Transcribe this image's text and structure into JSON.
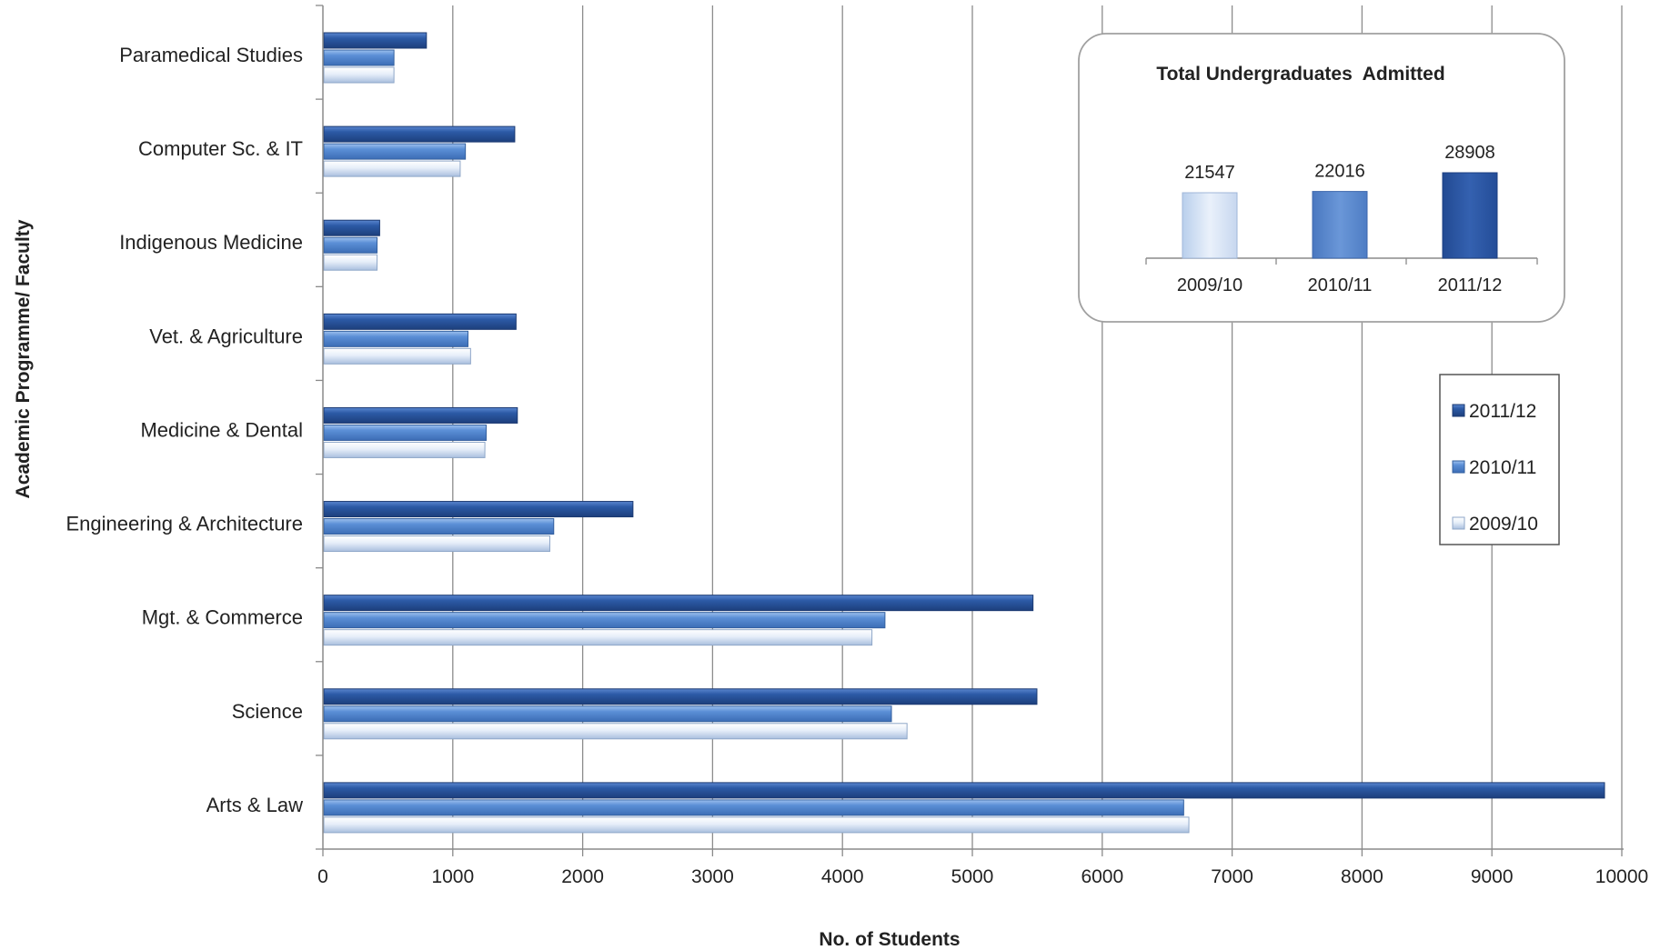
{
  "chart_data": [
    {
      "type": "bar",
      "orientation": "horizontal",
      "title": "",
      "xlabel": "No. of Students",
      "ylabel": "Academic Programme/ Faculty",
      "xlim": [
        0,
        10000
      ],
      "xticks": [
        0,
        1000,
        2000,
        3000,
        4000,
        5000,
        6000,
        7000,
        8000,
        9000,
        10000
      ],
      "grid": "vertical",
      "legend_position": "right",
      "categories": [
        "Paramedical Studies",
        "Computer Sc. & IT",
        "Indigenous Medicine",
        "Vet. & Agriculture",
        "Medicine & Dental",
        "Engineering & Architecture",
        "Mgt. & Commerce",
        "Science",
        "Arts & Law"
      ],
      "series": [
        {
          "name": "2011/12",
          "color": "#2c5aa6",
          "values": [
            790,
            1470,
            430,
            1480,
            1490,
            2380,
            5460,
            5490,
            9860
          ]
        },
        {
          "name": "2010/11",
          "color": "#5b8fd6",
          "values": [
            540,
            1090,
            410,
            1110,
            1250,
            1770,
            4320,
            4370,
            6620
          ]
        },
        {
          "name": "2009/10",
          "color": "#e0e9f6",
          "values": [
            540,
            1050,
            410,
            1130,
            1240,
            1740,
            4220,
            4490,
            6660
          ]
        }
      ]
    },
    {
      "type": "bar",
      "title": "Total Undergraduates  Admitted",
      "categories": [
        "2009/10",
        "2010/11",
        "2011/12"
      ],
      "values": [
        21547,
        22016,
        28908
      ],
      "value_labels": [
        "21547",
        "22016",
        "28908"
      ],
      "colors": [
        "#dde7f5",
        "#5b8ad0",
        "#2c56a6"
      ]
    }
  ]
}
